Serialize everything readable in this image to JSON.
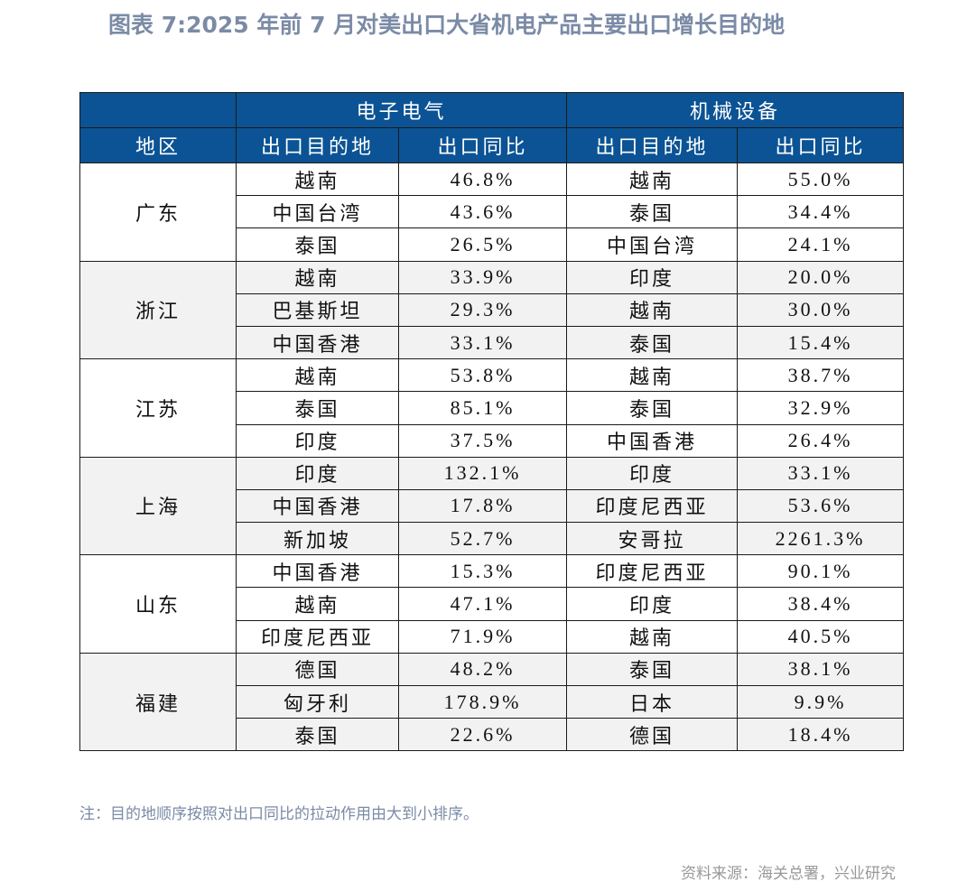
{
  "title": "图表 7:2025 年前 7 月对美出口大省机电产品主要出口增长目的地",
  "table": {
    "group_headers": [
      "电子电气",
      "机械设备"
    ],
    "columns": [
      "地区",
      "出口目的地",
      "出口同比",
      "出口目的地",
      "出口同比"
    ],
    "groups": [
      {
        "region": "广东",
        "rows": [
          [
            "越南",
            "46.8%",
            "越南",
            "55.0%"
          ],
          [
            "中国台湾",
            "43.6%",
            "泰国",
            "34.4%"
          ],
          [
            "泰国",
            "26.5%",
            "中国台湾",
            "24.1%"
          ]
        ]
      },
      {
        "region": "浙江",
        "rows": [
          [
            "越南",
            "33.9%",
            "印度",
            "20.0%"
          ],
          [
            "巴基斯坦",
            "29.3%",
            "越南",
            "30.0%"
          ],
          [
            "中国香港",
            "33.1%",
            "泰国",
            "15.4%"
          ]
        ]
      },
      {
        "region": "江苏",
        "rows": [
          [
            "越南",
            "53.8%",
            "越南",
            "38.7%"
          ],
          [
            "泰国",
            "85.1%",
            "泰国",
            "32.9%"
          ],
          [
            "印度",
            "37.5%",
            "中国香港",
            "26.4%"
          ]
        ]
      },
      {
        "region": "上海",
        "rows": [
          [
            "印度",
            "132.1%",
            "印度",
            "33.1%"
          ],
          [
            "中国香港",
            "17.8%",
            "印度尼西亚",
            "53.6%"
          ],
          [
            "新加坡",
            "52.7%",
            "安哥拉",
            "2261.3%"
          ]
        ]
      },
      {
        "region": "山东",
        "rows": [
          [
            "中国香港",
            "15.3%",
            "印度尼西亚",
            "90.1%"
          ],
          [
            "越南",
            "47.1%",
            "印度",
            "38.4%"
          ],
          [
            "印度尼西亚",
            "71.9%",
            "越南",
            "40.5%"
          ]
        ]
      },
      {
        "region": "福建",
        "rows": [
          [
            "德国",
            "48.2%",
            "泰国",
            "38.1%"
          ],
          [
            "匈牙利",
            "178.9%",
            "日本",
            "9.9%"
          ],
          [
            "泰国",
            "22.6%",
            "德国",
            "18.4%"
          ]
        ]
      }
    ]
  },
  "note": "注：目的地顺序按照对出口同比的拉动作用由大到小排序。",
  "source": "资料来源：海关总署，兴业研究"
}
